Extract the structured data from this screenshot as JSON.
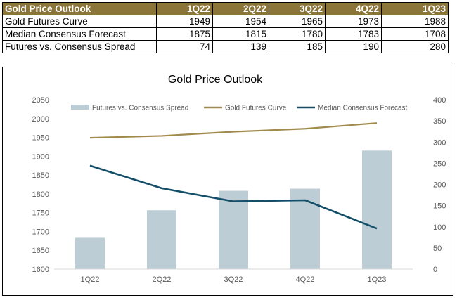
{
  "table": {
    "headers": [
      "Gold Price Outlook",
      "1Q22",
      "2Q22",
      "3Q22",
      "4Q22",
      "1Q23"
    ],
    "rows": [
      {
        "label": "Gold Futures Curve",
        "values": [
          "1949",
          "1954",
          "1965",
          "1973",
          "1988"
        ]
      },
      {
        "label": "Median Consensus Forecast",
        "values": [
          "1875",
          "1815",
          "1780",
          "1783",
          "1708"
        ]
      },
      {
        "label": "Futures vs. Consensus Spread",
        "values": [
          "74",
          "139",
          "185",
          "190",
          "280"
        ]
      }
    ]
  },
  "colors": {
    "header_bg": "#8b7539",
    "bar": "#bccdd6",
    "futures_line": "#a08a4c",
    "consensus_line": "#134f68"
  },
  "chart_data": {
    "type": "bar+line",
    "title": "Gold Price Outlook",
    "categories": [
      "1Q22",
      "2Q22",
      "3Q22",
      "4Q22",
      "1Q23"
    ],
    "y_left": {
      "range": [
        1600,
        2050
      ],
      "ticks": [
        "1600",
        "1650",
        "1700",
        "1750",
        "1800",
        "1850",
        "1900",
        "1950",
        "2000",
        "2050"
      ]
    },
    "y_right": {
      "range": [
        0,
        400
      ],
      "ticks": [
        "0",
        "50",
        "100",
        "150",
        "200",
        "250",
        "300",
        "350",
        "400"
      ]
    },
    "series": [
      {
        "name": "Futures vs. Consensus Spread",
        "kind": "bar",
        "axis": "right",
        "values": [
          74,
          139,
          185,
          190,
          280
        ]
      },
      {
        "name": "Gold Futures Curve",
        "kind": "line",
        "axis": "left",
        "values": [
          1949,
          1954,
          1965,
          1973,
          1988
        ]
      },
      {
        "name": "Median Consensus Forecast",
        "kind": "line",
        "axis": "left",
        "values": [
          1875,
          1815,
          1780,
          1783,
          1708
        ]
      }
    ],
    "grid": false,
    "legend": "top"
  }
}
